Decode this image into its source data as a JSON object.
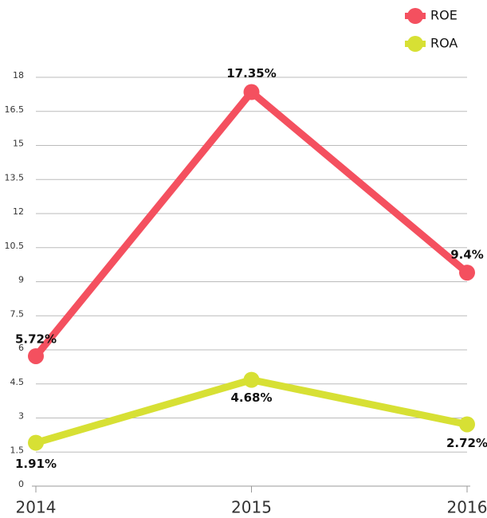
{
  "chart_data": {
    "type": "line",
    "categories": [
      "2014",
      "2015",
      "2016"
    ],
    "series": [
      {
        "name": "ROE",
        "color": "#f4505f",
        "values": [
          5.72,
          17.35,
          9.4
        ],
        "value_labels": [
          "5.72%",
          "17.35%",
          "9.4%"
        ]
      },
      {
        "name": "ROA",
        "color": "#d7e034",
        "values": [
          1.91,
          4.68,
          2.72
        ],
        "value_labels": [
          "1.91%",
          "4.68%",
          "2.72%"
        ]
      }
    ],
    "ylim": [
      0,
      18
    ],
    "yticks": [
      0,
      1.5,
      3,
      4.5,
      6,
      7.5,
      9,
      10.5,
      12,
      13.5,
      15,
      16.5,
      18
    ],
    "grid": true,
    "legend": "top-right"
  }
}
